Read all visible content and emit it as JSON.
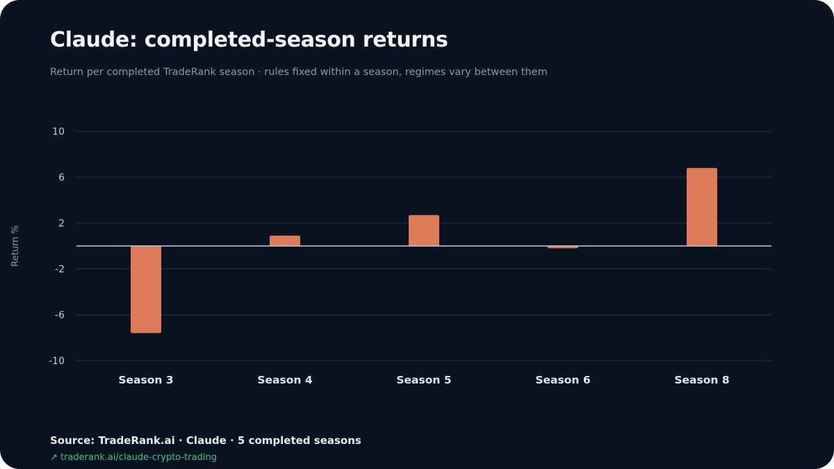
{
  "colors": {
    "background": "#0c1320",
    "bar": "#dd7a5a",
    "grid": "#1c2a36",
    "zero_line": "#c6ccd6",
    "link": "#3ec08a"
  },
  "footer": {
    "source": "Source: TradeRank.ai · Claude · 5 completed seasons",
    "link_icon": "arrow-up-right-icon",
    "link_text": "↗ traderank.ai/claude-crypto-trading"
  },
  "chart_data": {
    "type": "bar",
    "title": "Claude: completed-season returns",
    "subtitle": "Return per completed TradeRank season · rules fixed within a season, regimes vary between them",
    "xlabel": "",
    "ylabel": "Return %",
    "categories": [
      "Season 3",
      "Season 4",
      "Season 5",
      "Season 6",
      "Season 8"
    ],
    "values": [
      -7.6,
      0.9,
      2.7,
      -0.2,
      6.8
    ],
    "ylim": [
      -10,
      10
    ],
    "yticks": [
      10,
      6,
      2,
      -2,
      -6,
      -10
    ],
    "grid": true,
    "legend": "none"
  }
}
